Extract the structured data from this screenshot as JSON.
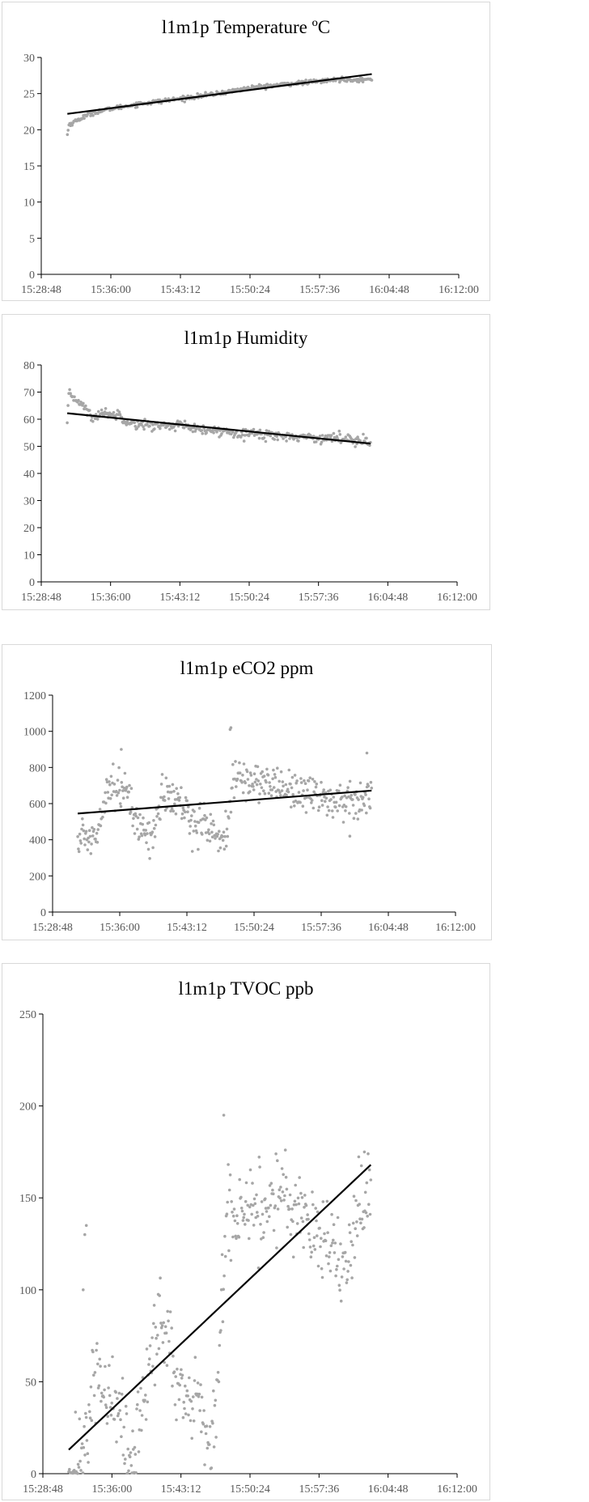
{
  "chart_data": [
    {
      "type": "scatter",
      "title": "l1m1p Temperature ºC",
      "xlabel": "",
      "ylabel": "",
      "x_ticks": [
        "15:28:48",
        "15:36:00",
        "15:43:12",
        "15:50:24",
        "15:57:36",
        "16:04:48",
        "16:12:00"
      ],
      "xlim": [
        "15:28:48",
        "16:12:00"
      ],
      "y_ticks": [
        0,
        5,
        10,
        15,
        20,
        25,
        30
      ],
      "ylim": [
        0,
        30
      ],
      "grid": false,
      "marker_color": "#a6a6a6",
      "trendline_color": "#000000",
      "time_range": [
        "15:31:30",
        "16:03:00"
      ],
      "profile": [
        [
          "15:31:30",
          19.3
        ],
        [
          "15:31:40",
          20.7
        ],
        [
          "15:32:30",
          21.3
        ],
        [
          "15:34:00",
          22.3
        ],
        [
          "15:36:00",
          22.9
        ],
        [
          "15:39:00",
          23.6
        ],
        [
          "15:43:12",
          24.3
        ],
        [
          "15:47:00",
          25.0
        ],
        [
          "15:50:24",
          25.8
        ],
        [
          "15:54:00",
          26.3
        ],
        [
          "15:57:36",
          26.7
        ],
        [
          "16:00:00",
          27.0
        ],
        [
          "16:03:00",
          26.9
        ]
      ],
      "noise": 0.15,
      "spikes": [],
      "points": 380,
      "trendline": [
        [
          "15:31:30",
          22.2
        ],
        [
          "16:03:00",
          27.7
        ]
      ]
    },
    {
      "type": "scatter",
      "title": "l1m1p Humidity",
      "xlabel": "",
      "ylabel": "",
      "x_ticks": [
        "15:28:48",
        "15:36:00",
        "15:43:12",
        "15:50:24",
        "15:57:36",
        "16:04:48",
        "16:12:00"
      ],
      "xlim": [
        "15:28:48",
        "16:12:00"
      ],
      "y_ticks": [
        0,
        10,
        20,
        30,
        40,
        50,
        60,
        70,
        80
      ],
      "ylim": [
        0,
        80
      ],
      "grid": false,
      "marker_color": "#a6a6a6",
      "trendline_color": "#000000",
      "time_range": [
        "15:31:30",
        "16:03:00"
      ],
      "profile": [
        [
          "15:31:30",
          58.0
        ],
        [
          "15:31:40",
          69.0
        ],
        [
          "15:33:00",
          66.0
        ],
        [
          "15:34:10",
          60.0
        ],
        [
          "15:35:00",
          62.5
        ],
        [
          "15:37:00",
          61.5
        ],
        [
          "15:38:00",
          58.5
        ],
        [
          "15:41:00",
          57.5
        ],
        [
          "15:43:12",
          58.0
        ],
        [
          "15:45:00",
          56.0
        ],
        [
          "15:50:24",
          55.0
        ],
        [
          "15:52:00",
          54.2
        ],
        [
          "15:57:36",
          53.2
        ],
        [
          "16:02:30",
          52.5
        ],
        [
          "16:03:00",
          50.0
        ]
      ],
      "noise": 0.9,
      "spikes": [],
      "points": 380,
      "trendline": [
        [
          "15:31:30",
          62.2
        ],
        [
          "16:03:00",
          51.0
        ]
      ]
    },
    {
      "type": "scatter",
      "title": "l1m1p eCO2 ppm",
      "xlabel": "",
      "ylabel": "",
      "x_ticks": [
        "15:28:48",
        "15:36:00",
        "15:43:12",
        "15:50:24",
        "15:57:36",
        "16:04:48",
        "16:12:00"
      ],
      "xlim": [
        "15:28:48",
        "16:12:00"
      ],
      "y_ticks": [
        0,
        200,
        400,
        600,
        800,
        1000,
        1200
      ],
      "ylim": [
        0,
        1200
      ],
      "grid": false,
      "marker_color": "#a6a6a6",
      "trendline_color": "#000000",
      "time_range": [
        "15:31:30",
        "16:03:00"
      ],
      "profile": [
        [
          "15:31:30",
          405
        ],
        [
          "15:33:30",
          420
        ],
        [
          "15:34:30",
          700
        ],
        [
          "15:36:30",
          690
        ],
        [
          "15:37:30",
          520
        ],
        [
          "15:39:30",
          410
        ],
        [
          "15:40:30",
          650
        ],
        [
          "15:42:00",
          620
        ],
        [
          "15:44:00",
          500
        ],
        [
          "15:45:30",
          480
        ],
        [
          "15:46:30",
          410
        ],
        [
          "15:47:30",
          420
        ],
        [
          "15:48:00",
          720
        ],
        [
          "15:50:24",
          730
        ],
        [
          "15:54:00",
          690
        ],
        [
          "15:57:36",
          640
        ],
        [
          "16:00:00",
          600
        ],
        [
          "16:02:00",
          650
        ],
        [
          "16:03:00",
          660
        ]
      ],
      "noise": 55,
      "spikes": [
        [
          "15:36:10",
          900
        ],
        [
          "15:47:50",
          1010
        ],
        [
          "15:47:55",
          1020
        ],
        [
          "16:02:30",
          880
        ],
        [
          "16:00:40",
          420
        ]
      ],
      "points": 450,
      "trendline": [
        [
          "15:31:30",
          545
        ],
        [
          "16:03:00",
          672
        ]
      ]
    },
    {
      "type": "scatter",
      "title": "l1m1p TVOC ppb",
      "xlabel": "",
      "ylabel": "",
      "x_ticks": [
        "15:28:48",
        "15:36:00",
        "15:43:12",
        "15:50:24",
        "15:57:36",
        "16:04:48",
        "16:12:00"
      ],
      "xlim": [
        "15:28:48",
        "16:12:00"
      ],
      "y_ticks": [
        0,
        50,
        100,
        150,
        200,
        250
      ],
      "ylim": [
        0,
        250
      ],
      "grid": false,
      "marker_color": "#a6a6a6",
      "trendline_color": "#000000",
      "time_range": [
        "15:31:30",
        "16:03:00"
      ],
      "profile": [
        [
          "15:31:30",
          3
        ],
        [
          "15:33:00",
          5
        ],
        [
          "15:34:00",
          55
        ],
        [
          "15:35:00",
          45
        ],
        [
          "15:36:30",
          35
        ],
        [
          "15:38:00",
          5
        ],
        [
          "15:40:00",
          60
        ],
        [
          "15:41:00",
          90
        ],
        [
          "15:42:00",
          70
        ],
        [
          "15:43:00",
          45
        ],
        [
          "15:44:00",
          30
        ],
        [
          "15:45:00",
          50
        ],
        [
          "15:46:00",
          5
        ],
        [
          "15:47:00",
          40
        ],
        [
          "15:48:00",
          145
        ],
        [
          "15:50:24",
          145
        ],
        [
          "15:54:00",
          150
        ],
        [
          "15:57:36",
          135
        ],
        [
          "16:00:00",
          110
        ],
        [
          "16:02:00",
          145
        ],
        [
          "16:03:00",
          160
        ]
      ],
      "noise": 12,
      "spikes": [
        [
          "15:33:10",
          130
        ],
        [
          "15:33:20",
          135
        ],
        [
          "15:33:00",
          100
        ],
        [
          "15:47:40",
          195
        ],
        [
          "16:02:20",
          175
        ]
      ],
      "points": 450,
      "trendline": [
        [
          "15:31:30",
          13
        ],
        [
          "16:03:00",
          168
        ]
      ]
    }
  ]
}
